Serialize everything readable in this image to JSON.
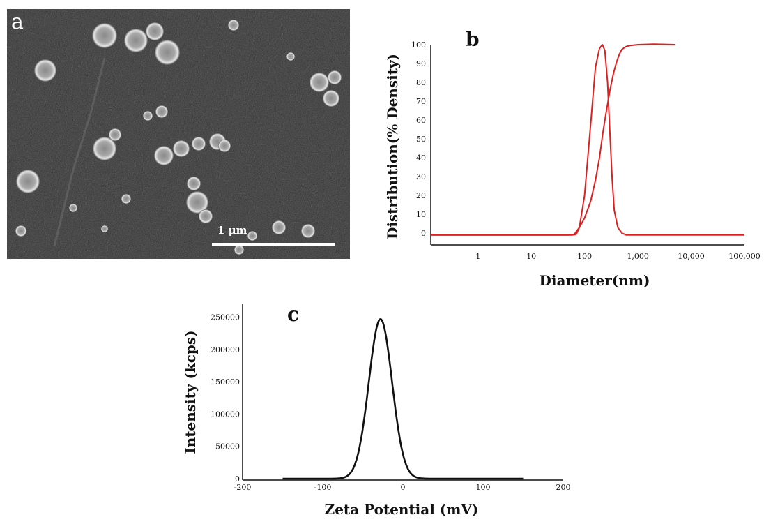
{
  "panel_a": {
    "letter": "a",
    "scale_bar_label": "1 μm"
  },
  "chart_data": [
    {
      "panel": "b",
      "type": "line",
      "xscale": "log",
      "xlabel": "Diameter(nm)",
      "ylabel": "Distribution(% Density)",
      "xticks": [
        1,
        10,
        100,
        1000,
        10000,
        100000
      ],
      "xtick_labels": [
        "1",
        "10",
        "100",
        "1,000",
        "10,000",
        "100,000"
      ],
      "yticks": [
        0,
        10,
        20,
        30,
        40,
        50,
        60,
        70,
        80,
        90,
        100
      ],
      "ylim": [
        0,
        100
      ],
      "color": "#e02020",
      "series": [
        {
          "x": [
            0.13,
            50,
            65,
            70,
            80,
            100,
            130,
            160,
            190,
            215,
            240,
            270,
            300,
            330,
            360,
            420,
            500,
            600,
            100000
          ],
          "y": [
            -1,
            -1,
            -0.9,
            -0.5,
            3,
            20,
            58,
            88,
            98,
            100,
            97,
            80,
            52,
            28,
            12,
            3,
            0,
            -1,
            -1
          ]
        },
        {
          "x": [
            0.13,
            60,
            65,
            80,
            100,
            130,
            160,
            190,
            220,
            250,
            300,
            350,
            400,
            450,
            500,
            600,
            700,
            1000,
            2000,
            5000
          ],
          "y": [
            -1,
            -1,
            -0.5,
            3,
            8,
            17,
            28,
            40,
            53,
            63,
            76,
            85,
            91,
            95,
            97.5,
            99,
            99.5,
            100,
            100.3,
            100
          ]
        }
      ]
    },
    {
      "panel": "c",
      "type": "line",
      "xlabel": "Zeta Potential (mV)",
      "ylabel": "Intensity (kcps)",
      "xticks": [
        -200,
        -100,
        0,
        100,
        200
      ],
      "yticks": [
        0,
        50000,
        100000,
        150000,
        200000,
        250000
      ],
      "xlim": [
        -200,
        200
      ],
      "ylim": [
        0,
        270000
      ],
      "color": "#111111",
      "series": [
        {
          "peak_x": -28,
          "peak_y": 247000,
          "x": [
            -150,
            150
          ],
          "baseline": 0
        }
      ]
    }
  ]
}
